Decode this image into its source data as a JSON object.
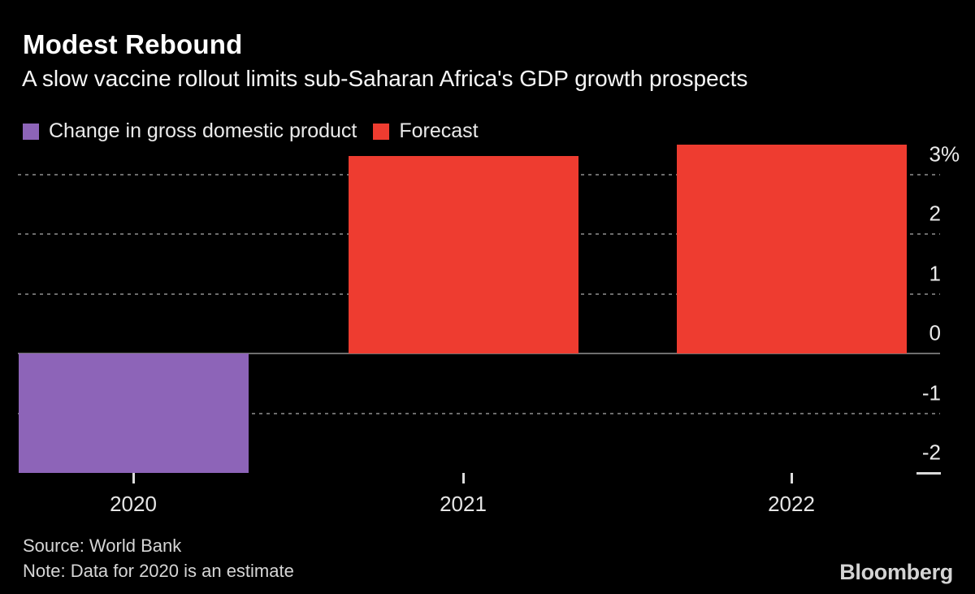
{
  "header": {
    "title": "Modest Rebound",
    "subtitle": "A slow vaccine rollout limits sub-Saharan Africa's GDP growth prospects"
  },
  "legend": {
    "items": [
      {
        "label": "Change in gross domestic product",
        "color": "#8d64b8"
      },
      {
        "label": "Forecast",
        "color": "#ee3c30"
      }
    ]
  },
  "chart_data": {
    "type": "bar",
    "title": "Modest Rebound",
    "subtitle": "A slow vaccine rollout limits sub-Saharan Africa's GDP growth prospects",
    "unit": "%",
    "categories": [
      "2020",
      "2021",
      "2022"
    ],
    "series": [
      {
        "name": "Change in gross domestic product",
        "color": "#8d64b8",
        "values": [
          -2.0,
          null,
          null
        ]
      },
      {
        "name": "Forecast",
        "color": "#ee3c30",
        "values": [
          null,
          3.3,
          3.5
        ]
      }
    ],
    "bars": [
      {
        "category": "2020",
        "value": -2.0,
        "series": "Change in gross domestic product"
      },
      {
        "category": "2021",
        "value": 3.3,
        "series": "Forecast"
      },
      {
        "category": "2022",
        "value": 3.5,
        "series": "Forecast"
      }
    ],
    "yticks": [
      {
        "value": 3,
        "label": "3",
        "suffix": "%"
      },
      {
        "value": 2,
        "label": "2",
        "suffix": ""
      },
      {
        "value": 1,
        "label": "1",
        "suffix": ""
      },
      {
        "value": 0,
        "label": "0",
        "suffix": ""
      },
      {
        "value": -1,
        "label": "-1",
        "suffix": ""
      },
      {
        "value": -2,
        "label": "-2",
        "suffix": ""
      }
    ],
    "ylim": [
      -2.0,
      3.5
    ],
    "grid": "dotted horizontal, solid zero axis, short end-cap at lowest tick",
    "legend_position": "top-left",
    "note": "Data for 2020 is an estimate"
  },
  "footer": {
    "source": "Source: World Bank",
    "note": "Note: Data for 2020 is an estimate",
    "brand": "Bloomberg"
  },
  "colors": {
    "background": "#000000",
    "actual_bar": "#8d64b8",
    "forecast_bar": "#ee3c30",
    "gridline": "#6c6c6c",
    "axis_line": "#6e6e6e",
    "tick": "#dcdcdc",
    "text_primary": "#ffffff",
    "text_secondary": "#d6d6d6"
  }
}
